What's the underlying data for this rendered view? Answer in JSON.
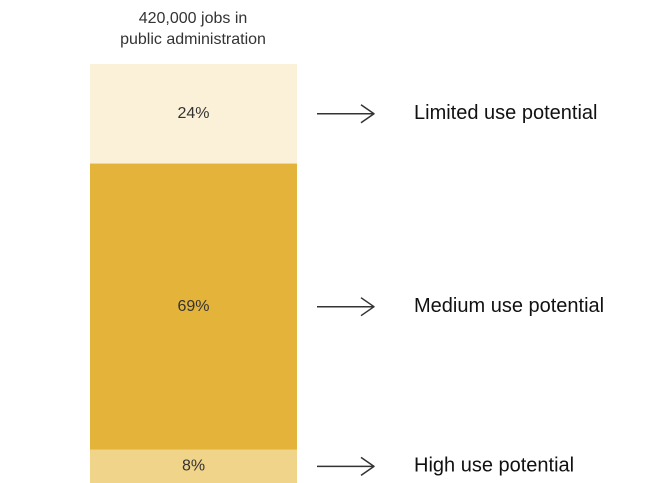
{
  "chart_data": {
    "type": "bar",
    "stacked": true,
    "title_lines": [
      "420,000 jobs in",
      "public administration"
    ],
    "series": [
      {
        "name": "Limited use potential",
        "value": 24,
        "label": "24%",
        "color": "#fbf1d9"
      },
      {
        "name": "Medium use potential",
        "value": 69,
        "label": "69%",
        "color": "#e4b43a"
      },
      {
        "name": "High use potential",
        "value": 8,
        "label": "8%",
        "color": "#f0d48a"
      }
    ],
    "order_top_to_bottom": [
      "Limited use potential",
      "Medium use potential",
      "High use potential"
    ],
    "arrow_color": "#333333"
  }
}
